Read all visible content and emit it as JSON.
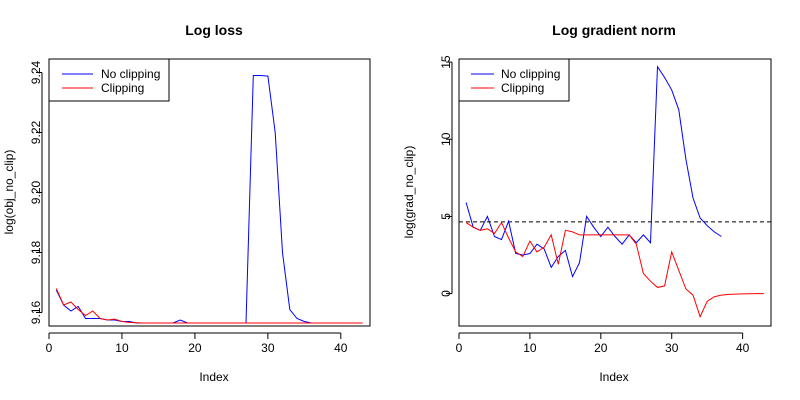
{
  "chart_data": [
    {
      "type": "line",
      "title": "Log loss",
      "xlabel": "Index",
      "ylabel": "log(obj_no_clip)",
      "xlim": [
        0,
        44
      ],
      "ylim": [
        9.1555,
        9.2445
      ],
      "x_ticks": [
        0,
        10,
        20,
        30,
        40
      ],
      "x_tick_labels": [
        "0",
        "10",
        "20",
        "30",
        "40"
      ],
      "y_ticks": [
        9.16,
        9.18,
        9.2,
        9.22,
        9.24
      ],
      "y_tick_labels": [
        "9.16",
        "9.18",
        "9.20",
        "9.22",
        "9.24"
      ],
      "legend_position": "top-left",
      "series": [
        {
          "name": "No clipping",
          "color": "#0000ff",
          "x": [
            1,
            2,
            3,
            4,
            5,
            6,
            7,
            8,
            9,
            10,
            11,
            12,
            13,
            14,
            15,
            16,
            17,
            18,
            19,
            20,
            21,
            22,
            23,
            24,
            25,
            26,
            27,
            28,
            29,
            30,
            31,
            32,
            33,
            34,
            35,
            36,
            37
          ],
          "values": [
            9.1675,
            9.1625,
            9.1605,
            9.162,
            9.158,
            9.158,
            9.158,
            9.1575,
            9.1575,
            9.157,
            9.157,
            9.1565,
            9.1565,
            9.1565,
            9.1565,
            9.1565,
            9.1565,
            9.1575,
            9.1565,
            9.1565,
            9.1565,
            9.1565,
            9.1565,
            9.1565,
            9.1565,
            9.1565,
            9.1565,
            9.239,
            9.239,
            9.2388,
            9.22,
            9.18,
            9.161,
            9.158,
            9.157,
            9.1565,
            9.1565
          ]
        },
        {
          "name": "Clipping",
          "color": "#ff0000",
          "x": [
            1,
            2,
            3,
            4,
            5,
            6,
            7,
            8,
            9,
            10,
            11,
            12,
            13,
            14,
            15,
            16,
            17,
            18,
            19,
            20,
            21,
            22,
            23,
            24,
            25,
            26,
            27,
            28,
            29,
            30,
            31,
            32,
            33,
            34,
            35,
            36,
            37,
            38,
            39,
            40,
            41,
            42,
            43
          ],
          "values": [
            9.168,
            9.1625,
            9.1635,
            9.161,
            9.159,
            9.1605,
            9.158,
            9.1575,
            9.1578,
            9.157,
            9.1567,
            9.1566,
            9.1565,
            9.1565,
            9.1565,
            9.1565,
            9.1565,
            9.1565,
            9.1565,
            9.1565,
            9.1565,
            9.1565,
            9.1565,
            9.1565,
            9.1565,
            9.1565,
            9.1565,
            9.1565,
            9.1565,
            9.1565,
            9.1565,
            9.1565,
            9.1565,
            9.1565,
            9.1565,
            9.1565,
            9.1565,
            9.1565,
            9.1565,
            9.1565,
            9.1565,
            9.1565,
            9.1565
          ]
        }
      ]
    },
    {
      "type": "line",
      "title": "Log gradient norm",
      "xlabel": "Index",
      "ylabel": "log(grad_no_clip)",
      "xlim": [
        0,
        44
      ],
      "ylim": [
        -2.1,
        15.2
      ],
      "x_ticks": [
        0,
        10,
        20,
        30,
        40
      ],
      "x_tick_labels": [
        "0",
        "10",
        "20",
        "30",
        "40"
      ],
      "y_ticks": [
        0,
        5,
        10,
        15
      ],
      "y_tick_labels": [
        "0",
        "5",
        "10",
        "15"
      ],
      "reference_line": {
        "y": 4.65,
        "style": "dashed",
        "color": "#000000"
      },
      "legend_position": "top-left",
      "series": [
        {
          "name": "No clipping",
          "color": "#0000ff",
          "x": [
            1,
            2,
            3,
            4,
            5,
            6,
            7,
            8,
            9,
            10,
            11,
            12,
            13,
            14,
            15,
            16,
            17,
            18,
            19,
            20,
            21,
            22,
            23,
            24,
            25,
            26,
            27,
            28,
            29,
            30,
            31,
            32,
            33,
            34,
            35,
            36,
            37
          ],
          "values": [
            5.9,
            4.3,
            4.1,
            5.0,
            3.7,
            3.5,
            4.7,
            2.6,
            2.5,
            2.6,
            3.2,
            2.9,
            1.7,
            2.4,
            2.8,
            1.1,
            2.0,
            5.0,
            4.3,
            3.7,
            4.3,
            3.7,
            3.2,
            3.8,
            3.3,
            3.8,
            3.3,
            14.7,
            14.0,
            13.2,
            11.9,
            8.7,
            6.2,
            4.9,
            4.4,
            4.0,
            3.7
          ]
        },
        {
          "name": "Clipping",
          "color": "#ff0000",
          "x": [
            1,
            2,
            3,
            4,
            5,
            6,
            7,
            8,
            9,
            10,
            11,
            12,
            13,
            14,
            15,
            16,
            17,
            18,
            19,
            20,
            21,
            22,
            23,
            24,
            25,
            26,
            27,
            28,
            29,
            30,
            31,
            32,
            33,
            34,
            35,
            36,
            37,
            38,
            39,
            40,
            41,
            42,
            43
          ],
          "values": [
            4.6,
            4.3,
            4.1,
            4.2,
            3.9,
            4.6,
            3.6,
            2.7,
            2.4,
            3.4,
            2.7,
            3.0,
            3.8,
            1.9,
            4.1,
            4.0,
            3.8,
            3.8,
            3.8,
            3.8,
            3.8,
            3.8,
            3.8,
            3.8,
            3.2,
            1.3,
            0.8,
            0.4,
            0.5,
            2.7,
            1.5,
            0.3,
            -0.1,
            -1.5,
            -0.5,
            -0.2,
            -0.1,
            -0.05,
            -0.03,
            -0.02,
            -0.01,
            0.0,
            0.0
          ]
        }
      ]
    }
  ]
}
